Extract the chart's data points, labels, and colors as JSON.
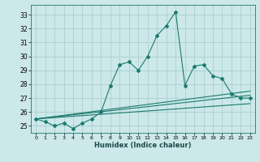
{
  "xlabel": "Humidex (Indice chaleur)",
  "bg_color": "#cce8e8",
  "grid_color": "#aacfcf",
  "line_color": "#1a7a6e",
  "xlim": [
    -0.5,
    23.5
  ],
  "ylim": [
    24.5,
    33.7
  ],
  "yticks": [
    25,
    26,
    27,
    28,
    29,
    30,
    31,
    32,
    33
  ],
  "xticks": [
    0,
    1,
    2,
    3,
    4,
    5,
    6,
    7,
    8,
    9,
    10,
    11,
    12,
    13,
    14,
    15,
    16,
    17,
    18,
    19,
    20,
    21,
    22,
    23
  ],
  "series1_x": [
    0,
    1,
    2,
    3,
    4,
    5,
    6,
    7,
    8,
    9,
    10,
    11,
    12,
    13,
    14,
    15,
    16,
    17,
    18,
    19,
    20,
    21,
    22,
    23
  ],
  "series1_y": [
    25.5,
    25.3,
    25.0,
    25.2,
    24.8,
    25.2,
    25.5,
    26.0,
    27.9,
    29.4,
    29.6,
    29.0,
    30.0,
    31.5,
    32.2,
    33.2,
    27.9,
    29.3,
    29.4,
    28.6,
    28.4,
    27.3,
    27.0,
    27.0
  ],
  "series2_x": [
    0,
    23
  ],
  "series2_y": [
    25.5,
    27.2
  ],
  "series3_x": [
    0,
    23
  ],
  "series3_y": [
    25.5,
    26.6
  ],
  "series4_x": [
    0,
    23
  ],
  "series4_y": [
    25.5,
    27.5
  ]
}
